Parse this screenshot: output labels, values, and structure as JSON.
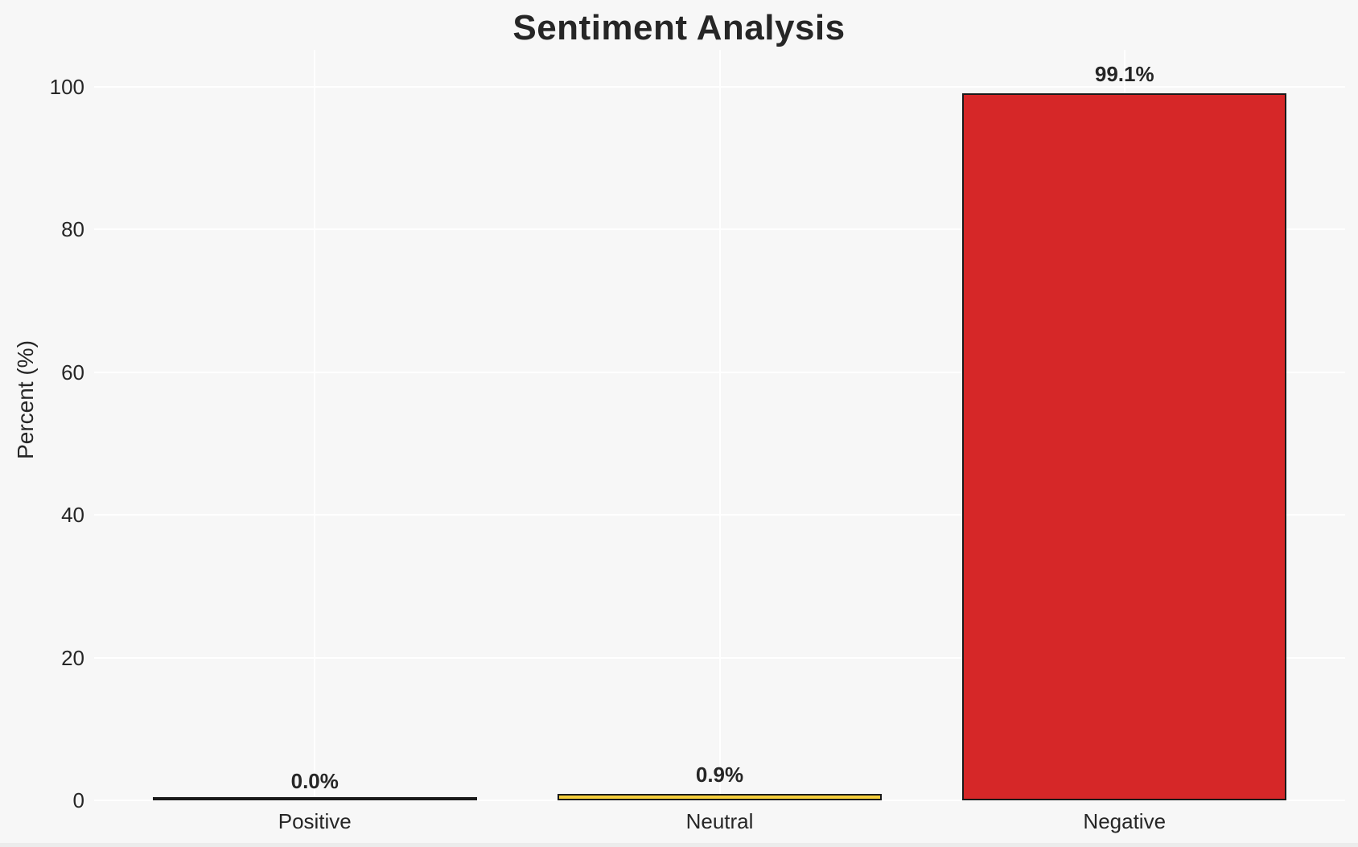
{
  "chart_data": {
    "type": "bar",
    "title": "Sentiment Analysis",
    "xlabel": "",
    "ylabel": "Percent (%)",
    "categories": [
      "Positive",
      "Neutral",
      "Negative"
    ],
    "values": [
      0.0,
      0.9,
      99.1
    ],
    "value_labels": [
      "0.0%",
      "0.9%",
      "99.1%"
    ],
    "bar_colors": [
      "none",
      "#f5ce3b",
      "#d62728"
    ],
    "bar_edge_color": "#1a1a1a",
    "yticks": [
      0,
      20,
      40,
      60,
      80,
      100
    ],
    "ytick_labels": [
      "0",
      "20",
      "40",
      "60",
      "80",
      "100"
    ],
    "ylim": [
      0,
      105.2
    ],
    "grid": true,
    "grid_color": "#ffffff",
    "legend": "none",
    "colors": {
      "background": "#f7f7f7",
      "text": "#262626"
    }
  }
}
